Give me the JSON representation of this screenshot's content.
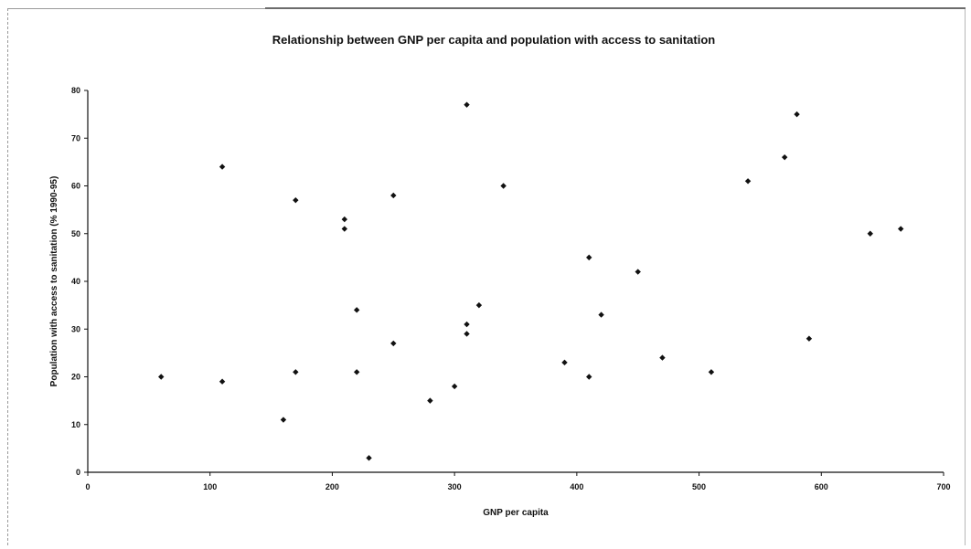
{
  "chart_data": {
    "type": "scatter",
    "title": "Relationship between GNP per capita and population with access to sanitation",
    "xlabel": "GNP per capita",
    "ylabel": "Population with access to sanitation (% 1990-95)",
    "xlim": [
      0,
      700
    ],
    "ylim": [
      0,
      80
    ],
    "xticks": [
      "0",
      "100",
      "200",
      "300",
      "400",
      "500",
      "600",
      "700"
    ],
    "yticks": [
      "0",
      "10",
      "20",
      "30",
      "40",
      "50",
      "60",
      "70",
      "80"
    ],
    "grid": false,
    "legend": "none",
    "marker_color": "#111111",
    "x": [
      60,
      110,
      110,
      160,
      170,
      170,
      210,
      210,
      220,
      220,
      230,
      250,
      250,
      280,
      300,
      310,
      310,
      310,
      320,
      340,
      390,
      410,
      410,
      420,
      450,
      470,
      510,
      540,
      570,
      580,
      590,
      640,
      665
    ],
    "y": [
      20,
      19,
      64,
      11,
      21,
      57,
      51,
      53,
      21,
      34,
      3,
      27,
      58,
      15,
      18,
      77,
      29,
      31,
      35,
      60,
      23,
      20,
      45,
      33,
      42,
      24,
      21,
      61,
      66,
      75,
      28,
      50,
      51
    ]
  }
}
